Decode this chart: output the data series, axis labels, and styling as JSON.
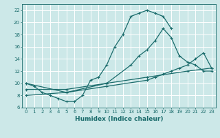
{
  "xlabel": "Humidex (Indice chaleur)",
  "bg_color": "#cce8e8",
  "line_color": "#1a6b6b",
  "grid_color": "#b0d0d0",
  "xlim": [
    -0.5,
    23.5
  ],
  "ylim": [
    6,
    23
  ],
  "xticks": [
    0,
    1,
    2,
    3,
    4,
    5,
    6,
    7,
    8,
    9,
    10,
    11,
    12,
    13,
    14,
    15,
    16,
    17,
    18,
    19,
    20,
    21,
    22,
    23
  ],
  "yticks": [
    6,
    8,
    10,
    12,
    14,
    16,
    18,
    20,
    22
  ],
  "curve1_x": [
    0,
    1,
    2,
    3,
    4,
    5,
    6,
    7,
    8,
    9,
    10,
    11,
    12,
    13,
    14,
    15,
    16,
    17,
    18
  ],
  "curve1_y": [
    10,
    9.5,
    8.5,
    8,
    7.5,
    7,
    7,
    8,
    10.5,
    11,
    13,
    16,
    18,
    21,
    21.5,
    22,
    21.5,
    21,
    19
  ],
  "curve2_x": [
    0,
    5,
    10,
    13,
    14,
    15,
    16,
    17,
    18,
    19,
    20,
    21,
    22,
    23
  ],
  "curve2_y": [
    10,
    8.5,
    10,
    13,
    14.5,
    15.5,
    17,
    19,
    17.5,
    14.5,
    13.5,
    13,
    12,
    12
  ],
  "curve3_x": [
    0,
    5,
    10,
    15,
    20,
    23
  ],
  "curve3_y": [
    9,
    9,
    10,
    11,
    12,
    12.5
  ],
  "curve4_x": [
    0,
    5,
    10,
    15,
    16,
    17,
    18,
    19,
    20,
    21,
    22,
    23
  ],
  "curve4_y": [
    8,
    8.5,
    9.5,
    10.5,
    11,
    11.5,
    12,
    12.5,
    13,
    14,
    15,
    12.5
  ]
}
